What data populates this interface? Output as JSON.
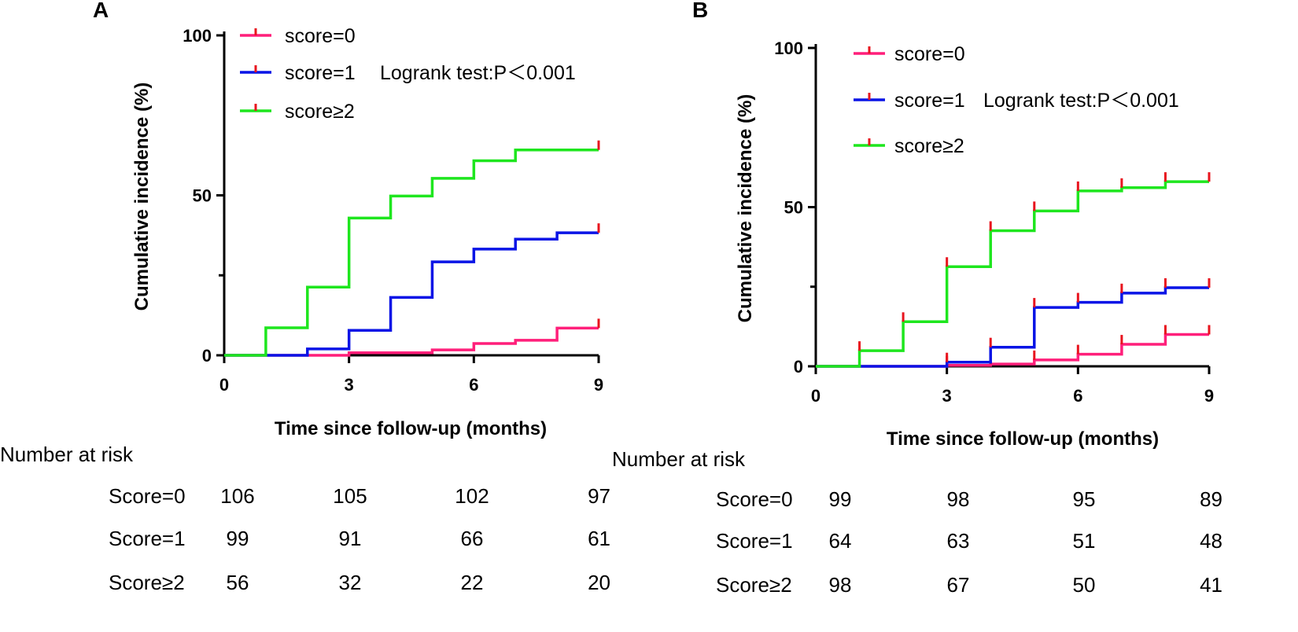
{
  "chart_data": [
    {
      "type": "line",
      "panel": "A",
      "title": "",
      "xlabel": "Time since follow-up (months)",
      "ylabel": "Cumulative incidence (%)",
      "xlim": [
        0,
        9
      ],
      "ylim": [
        0,
        100
      ],
      "xticks": [
        "0",
        "3",
        "6",
        "9"
      ],
      "yticks": [
        "0",
        "50",
        "100"
      ],
      "annotation": "Logrank test:P＜0.001",
      "legend_position": "top-left",
      "series": [
        {
          "name": "score=0",
          "color": "#ff1f7a",
          "x": [
            0,
            3,
            5,
            6,
            7,
            8,
            9
          ],
          "y": [
            0,
            0.8,
            1.7,
            3.7,
            4.7,
            8.5,
            8.5
          ]
        },
        {
          "name": "score=1",
          "color": "#0a14e6",
          "x": [
            0,
            2,
            3,
            4,
            5,
            6,
            7,
            8,
            9
          ],
          "y": [
            0,
            2.0,
            7.8,
            18.1,
            29.2,
            33.2,
            36.3,
            38.3,
            38.3
          ]
        },
        {
          "name": "score≥2",
          "color": "#1ee61e",
          "x": [
            0,
            1,
            2,
            3,
            4,
            5,
            6,
            7,
            9
          ],
          "y": [
            0,
            8.6,
            21.3,
            42.9,
            49.8,
            55.3,
            60.8,
            64.2,
            64.2
          ]
        }
      ],
      "risk_table": {
        "title": "Number at risk",
        "rows": [
          {
            "label": "Score=0",
            "values": [
              "106",
              "105",
              "102",
              "97"
            ]
          },
          {
            "label": "Score=1",
            "values": [
              "99",
              "91",
              "66",
              "61"
            ]
          },
          {
            "label": "Score≥2",
            "values": [
              "56",
              "32",
              "22",
              "20"
            ]
          }
        ]
      }
    },
    {
      "type": "line",
      "panel": "B",
      "title": "",
      "xlabel": "Time since follow-up (months)",
      "ylabel": "Cumulative incidence (%)",
      "xlim": [
        0,
        9
      ],
      "ylim": [
        0,
        100
      ],
      "xticks": [
        "0",
        "3",
        "6",
        "9"
      ],
      "yticks": [
        "0",
        "50",
        "100"
      ],
      "annotation": "Logrank test:P＜0.001",
      "legend_position": "top-left",
      "series": [
        {
          "name": "score=0",
          "color": "#ff1f7a",
          "x": [
            0,
            3,
            4,
            5,
            6,
            7,
            8,
            9
          ],
          "y": [
            0,
            0.3,
            0.7,
            2.0,
            3.8,
            6.9,
            10.0,
            10.0
          ]
        },
        {
          "name": "score=1",
          "color": "#0a14e6",
          "x": [
            0,
            3,
            4,
            5,
            6,
            7,
            8,
            9
          ],
          "y": [
            0,
            1.3,
            6.0,
            18.5,
            20.1,
            23.0,
            24.7,
            24.7
          ]
        },
        {
          "name": "score≥2",
          "color": "#1ee61e",
          "x": [
            0,
            1,
            2,
            3,
            4,
            5,
            6,
            7,
            8,
            9
          ],
          "y": [
            0,
            4.9,
            14.0,
            31.3,
            42.6,
            48.8,
            55.1,
            56.1,
            58.0,
            58.0
          ]
        }
      ],
      "risk_table": {
        "title": "Number at risk",
        "rows": [
          {
            "label": "Score=0",
            "values": [
              "99",
              "98",
              "95",
              "89"
            ]
          },
          {
            "label": "Score=1",
            "values": [
              "64",
              "63",
              "51",
              "48"
            ]
          },
          {
            "label": "Score≥2",
            "values": [
              "98",
              "67",
              "50",
              "41"
            ]
          }
        ]
      }
    }
  ],
  "censor_color": "#e8141e"
}
